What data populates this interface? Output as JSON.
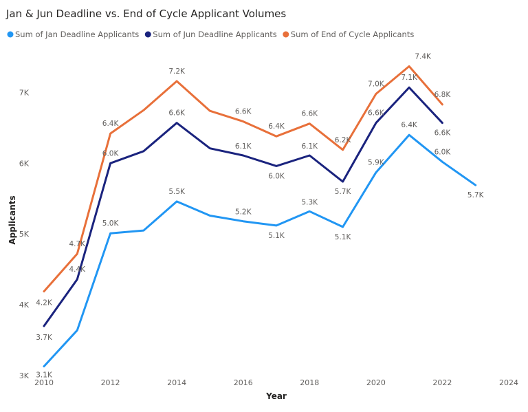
{
  "chart_data": {
    "type": "line",
    "title": "Jan & Jun Deadline vs. End of Cycle Applicant Volumes",
    "xlabel": "Year",
    "ylabel": "Applicants",
    "xlim": [
      2010,
      2024
    ],
    "ylim": [
      3000,
      7500
    ],
    "x_ticks": [
      "2010",
      "2012",
      "2014",
      "2016",
      "2018",
      "2020",
      "2022",
      "2024"
    ],
    "y_ticks": [
      "3K",
      "4K",
      "5K",
      "6K",
      "7K"
    ],
    "legend_position": "top-left",
    "series": [
      {
        "name": "Sum of Jan Deadline Applicants",
        "color": "#2196F3",
        "x": [
          2010,
          2011,
          2012,
          2013,
          2014,
          2015,
          2016,
          2017,
          2018,
          2019,
          2020,
          2021,
          2022,
          2023
        ],
        "values": [
          3130,
          3640,
          5010,
          5050,
          5460,
          5260,
          5180,
          5120,
          5320,
          5100,
          5870,
          6400,
          6020,
          5690
        ],
        "labels": [
          "3.1K",
          null,
          "5.0K",
          null,
          "5.5K",
          null,
          "5.2K",
          "5.1K",
          "5.3K",
          "5.1K",
          "5.9K",
          "6.4K",
          "6.0K",
          "5.7K"
        ]
      },
      {
        "name": "Sum of Jun Deadline Applicants",
        "color": "#1A237E",
        "x": [
          2010,
          2011,
          2012,
          2013,
          2014,
          2015,
          2016,
          2017,
          2018,
          2019,
          2020,
          2021,
          2022
        ],
        "values": [
          3700,
          4360,
          6000,
          6170,
          6570,
          6210,
          6110,
          5960,
          6110,
          5740,
          6570,
          7070,
          6570
        ],
        "labels": [
          "3.7K",
          "4.4K",
          "6.0K",
          null,
          "6.6K",
          null,
          "6.1K",
          "6.0K",
          "6.1K",
          "5.7K",
          "6.6K",
          "7.1K",
          "6.6K"
        ]
      },
      {
        "name": "Sum of End of Cycle Applicants",
        "color": "#E8703A",
        "x": [
          2010,
          2011,
          2012,
          2013,
          2014,
          2015,
          2016,
          2017,
          2018,
          2019,
          2020,
          2021,
          2022
        ],
        "values": [
          4190,
          4720,
          6420,
          6750,
          7160,
          6740,
          6590,
          6380,
          6560,
          6190,
          6980,
          7370,
          6830
        ],
        "labels": [
          "4.2K",
          "4.7K",
          "6.4K",
          null,
          "7.2K",
          null,
          "6.6K",
          "6.4K",
          "6.6K",
          "6.2K",
          "7.0K",
          "7.4K",
          "6.8K"
        ]
      }
    ]
  }
}
